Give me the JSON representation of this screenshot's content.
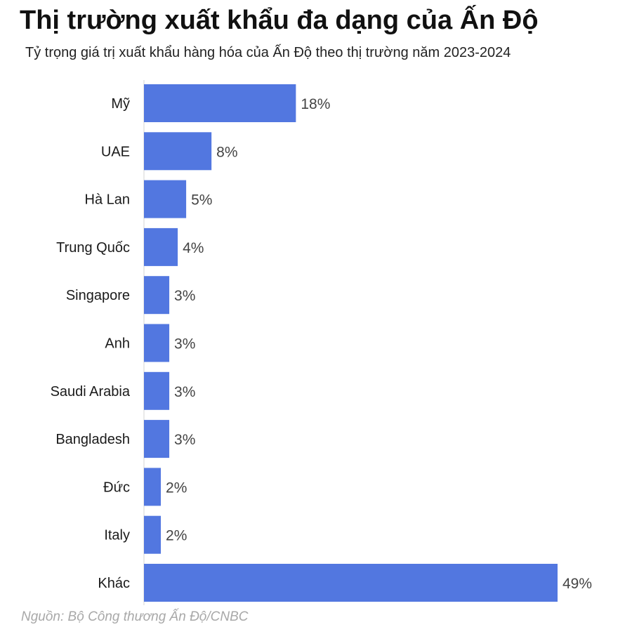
{
  "header": {
    "title": "Thị trường xuất khẩu đa dạng của Ấn Độ",
    "subtitle": "Tỷ trọng giá trị xuất khẩu hàng hóa của Ấn Độ theo thị trường năm 2023-2024"
  },
  "footer": {
    "source": "Nguồn: Bộ Công thương Ấn Độ/CNBC"
  },
  "chart_data": {
    "type": "bar",
    "orientation": "horizontal",
    "categories": [
      "Mỹ",
      "UAE",
      "Hà Lan",
      "Trung Quốc",
      "Singapore",
      "Anh",
      "Saudi Arabia",
      "Bangladesh",
      "Đức",
      "Italy",
      "Khác"
    ],
    "values": [
      18,
      8,
      5,
      4,
      3,
      3,
      3,
      3,
      2,
      2,
      49
    ],
    "value_labels": [
      "18%",
      "8%",
      "5%",
      "4%",
      "3%",
      "3%",
      "3%",
      "3%",
      "2%",
      "2%",
      "49%"
    ],
    "unit": "%",
    "bar_color": "#5277E0",
    "xlim": [
      0,
      49
    ],
    "grid": false,
    "legend": "none"
  }
}
